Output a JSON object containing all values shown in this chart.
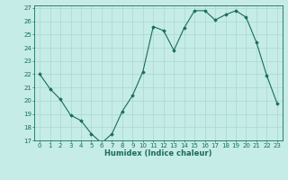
{
  "x": [
    0,
    1,
    2,
    3,
    4,
    5,
    6,
    7,
    8,
    9,
    10,
    11,
    12,
    13,
    14,
    15,
    16,
    17,
    18,
    19,
    20,
    21,
    22,
    23
  ],
  "y": [
    22.0,
    20.9,
    20.1,
    18.9,
    18.5,
    17.5,
    16.8,
    17.5,
    19.2,
    20.4,
    22.2,
    25.6,
    25.3,
    23.8,
    25.5,
    26.8,
    26.8,
    26.1,
    26.5,
    26.8,
    26.3,
    24.4,
    21.9,
    19.8
  ],
  "xlabel": "Humidex (Indice chaleur)",
  "bg_color": "#c5ece6",
  "grid_color": "#aad8d0",
  "line_color": "#1a6b60",
  "marker_color": "#1a6b60",
  "xlim": [
    -0.5,
    23.5
  ],
  "ylim": [
    17,
    27.2
  ],
  "yticks": [
    17,
    18,
    19,
    20,
    21,
    22,
    23,
    24,
    25,
    26,
    27
  ],
  "xticks": [
    0,
    1,
    2,
    3,
    4,
    5,
    6,
    7,
    8,
    9,
    10,
    11,
    12,
    13,
    14,
    15,
    16,
    17,
    18,
    19,
    20,
    21,
    22,
    23
  ],
  "tick_fontsize": 5.0,
  "xlabel_fontsize": 6.0
}
